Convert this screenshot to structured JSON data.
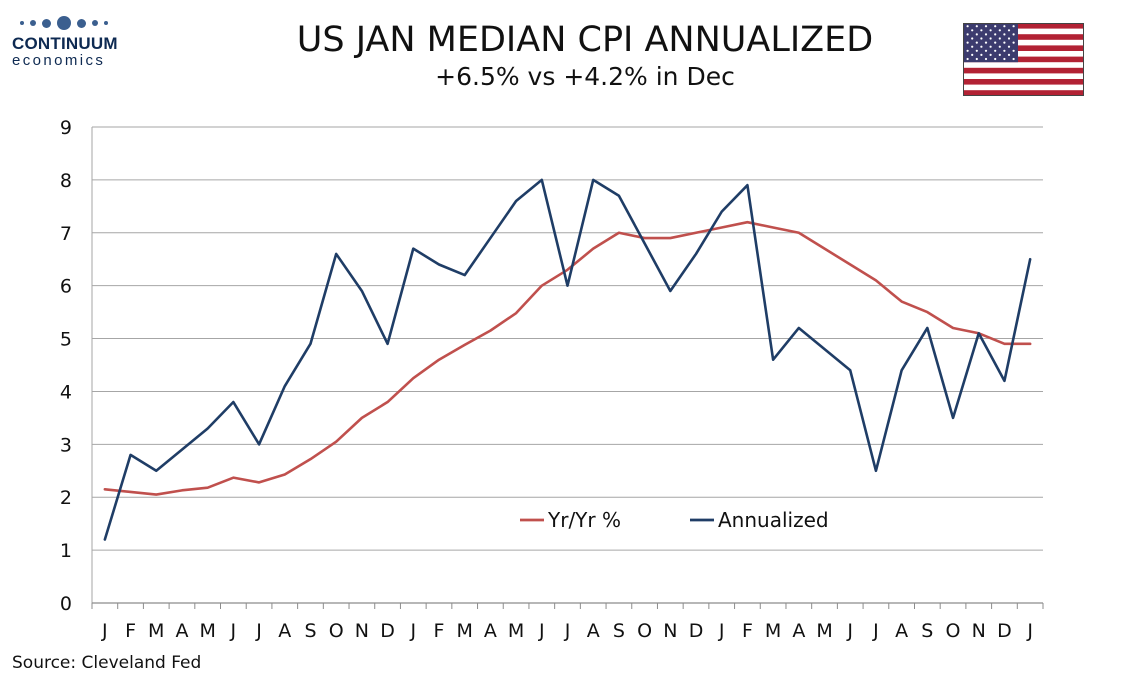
{
  "header": {
    "logo_name": "CONTINUUM",
    "logo_sub": "economics",
    "title": "US JAN MEDIAN CPI ANNUALIZED",
    "subtitle": "+6.5% vs +4.2% in Dec"
  },
  "footer": {
    "source": "Source: Cleveland Fed"
  },
  "colors": {
    "yoy": "#c0504d",
    "annualized": "#1f3d66",
    "grid": "#a6a6a6",
    "logo": "#0e2a52"
  },
  "chart_data": {
    "type": "line",
    "title": "US JAN MEDIAN CPI ANNUALIZED",
    "subtitle": "+6.5% vs +4.2% in Dec",
    "categories": [
      "J",
      "F",
      "M",
      "A",
      "M",
      "J",
      "J",
      "A",
      "S",
      "O",
      "N",
      "D",
      "J",
      "F",
      "M",
      "A",
      "M",
      "J",
      "J",
      "A",
      "S",
      "O",
      "N",
      "D",
      "J",
      "F",
      "M",
      "A",
      "M",
      "J",
      "J",
      "A",
      "S",
      "O",
      "N",
      "D",
      "J"
    ],
    "ylim": [
      0,
      9
    ],
    "yticks": [
      0,
      1,
      2,
      3,
      4,
      5,
      6,
      7,
      8,
      9
    ],
    "grid": true,
    "legend_position": "bottom-center",
    "series": [
      {
        "name": "Yr/Yr %",
        "color": "#c0504d",
        "values": [
          2.15,
          2.1,
          2.05,
          2.13,
          2.18,
          2.37,
          2.28,
          2.43,
          2.72,
          3.05,
          3.5,
          3.8,
          4.25,
          4.6,
          4.88,
          5.15,
          5.48,
          6.0,
          6.3,
          6.7,
          7.0,
          6.9,
          6.9,
          7.0,
          7.1,
          7.2,
          7.1,
          7.0,
          6.7,
          6.4,
          6.1,
          5.7,
          5.5,
          5.2,
          5.1,
          4.9,
          4.9
        ]
      },
      {
        "name": "Annualized",
        "color": "#1f3d66",
        "values": [
          1.2,
          2.8,
          2.5,
          2.9,
          3.3,
          3.8,
          3.0,
          4.1,
          4.9,
          6.6,
          5.9,
          4.9,
          6.7,
          6.4,
          6.2,
          6.9,
          7.6,
          8.0,
          6.0,
          8.0,
          7.7,
          6.8,
          5.9,
          6.6,
          7.4,
          7.9,
          4.6,
          5.2,
          4.8,
          4.4,
          2.5,
          4.4,
          5.2,
          3.5,
          5.1,
          4.2,
          6.5
        ]
      }
    ]
  }
}
